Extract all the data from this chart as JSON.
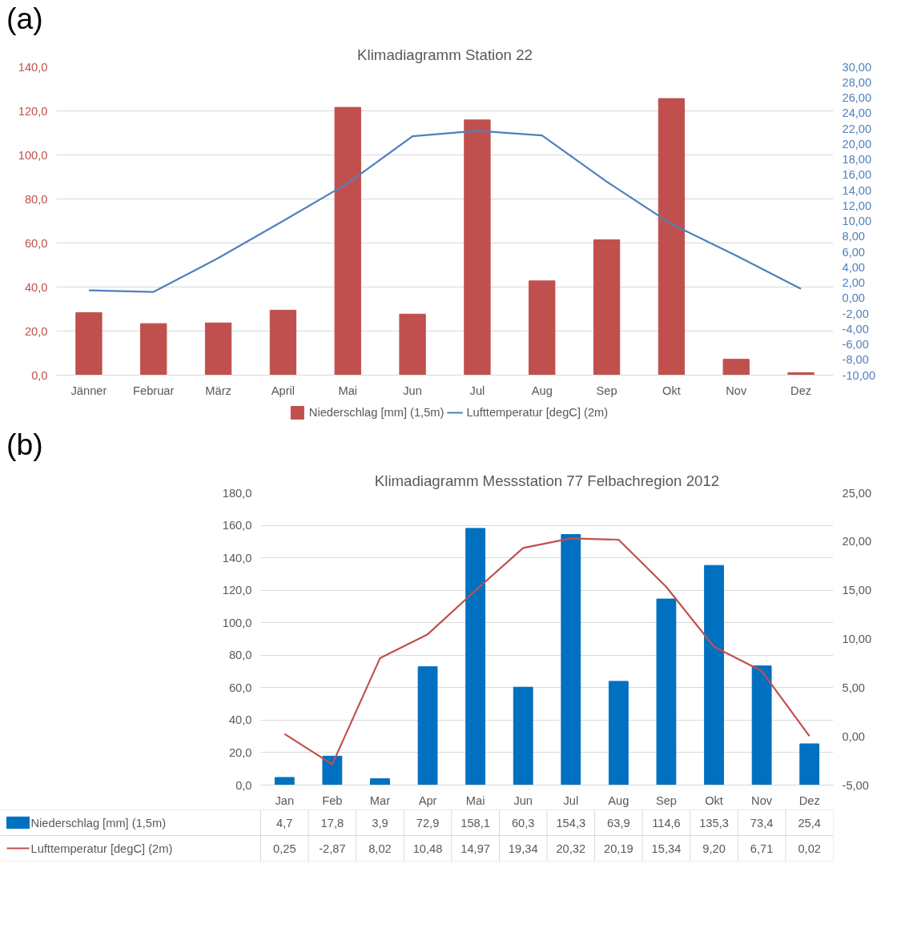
{
  "chart_data": [
    {
      "type": "bar",
      "title": "Klimadiagramm Station 22",
      "annotations": [
        "(a)"
      ],
      "categories": [
        "Jänner",
        "Februar",
        "März",
        "April",
        "Mai",
        "Jun",
        "Jul",
        "Aug",
        "Sep",
        "Okt",
        "Nov",
        "Dez"
      ],
      "series": [
        {
          "name": "Niederschlag [mm] (1,5m)",
          "color": "#c0504d",
          "values": [
            28.4,
            23.4,
            23.7,
            29.5,
            121.6,
            27.7,
            115.9,
            42.8,
            61.5,
            125.6,
            7.2,
            1.1
          ]
        },
        {
          "name": "Lufttemperatur [degC] (2m)",
          "type": "line",
          "axis": "y2",
          "color": "#4f81bd",
          "values": [
            1.0,
            0.8,
            5.2,
            10.0,
            14.9,
            21.0,
            21.7,
            21.1,
            15.1,
            9.6,
            5.5,
            1.2
          ]
        }
      ],
      "ylim": [
        0,
        140
      ],
      "yticks": [
        {
          "value": 0,
          "label": "0,0"
        },
        {
          "value": 20,
          "label": "20,0"
        },
        {
          "value": 40,
          "label": "40,0"
        },
        {
          "value": 60,
          "label": "60,0"
        },
        {
          "value": 80,
          "label": "80,0"
        },
        {
          "value": 100,
          "label": "100,0"
        },
        {
          "value": 120,
          "label": "120,0"
        },
        {
          "value": 140,
          "label": "140,0"
        }
      ],
      "y2lim": [
        -10,
        30
      ],
      "y2ticks": [
        {
          "value": -10,
          "label": "-10,00"
        },
        {
          "value": -8,
          "label": "-8,00"
        },
        {
          "value": -6,
          "label": "-6,00"
        },
        {
          "value": -4,
          "label": "-4,00"
        },
        {
          "value": -2,
          "label": "-2,00"
        },
        {
          "value": 0,
          "label": "0,00"
        },
        {
          "value": 2,
          "label": "2,00"
        },
        {
          "value": 4,
          "label": "4,00"
        },
        {
          "value": 6,
          "label": "6,00"
        },
        {
          "value": 8,
          "label": "8,00"
        },
        {
          "value": 10,
          "label": "10,00"
        },
        {
          "value": 12,
          "label": "12,00"
        },
        {
          "value": 14,
          "label": "14,00"
        },
        {
          "value": 16,
          "label": "16,00"
        },
        {
          "value": 18,
          "label": "18,00"
        },
        {
          "value": 20,
          "label": "20,00"
        },
        {
          "value": 22,
          "label": "22,00"
        },
        {
          "value": 24,
          "label": "24,00"
        },
        {
          "value": 26,
          "label": "26,00"
        },
        {
          "value": 28,
          "label": "28,00"
        },
        {
          "value": 30,
          "label": "30,00"
        }
      ],
      "grid": "y",
      "legend": "bottom"
    },
    {
      "type": "bar",
      "title": "Klimadiagramm Messstation 77 Felbachregion 2012",
      "annotations": [
        "(b)"
      ],
      "categories": [
        "Jan",
        "Feb",
        "Mar",
        "Apr",
        "Mai",
        "Jun",
        "Jul",
        "Aug",
        "Sep",
        "Okt",
        "Nov",
        "Dez"
      ],
      "series": [
        {
          "name": "Niederschlag [mm] (1,5m)",
          "color": "#0070c0",
          "values": [
            4.7,
            17.8,
            3.9,
            72.9,
            158.1,
            60.3,
            154.3,
            63.9,
            114.6,
            135.3,
            73.4,
            25.4
          ],
          "value_labels": [
            "4,7",
            "17,8",
            "3,9",
            "72,9",
            "158,1",
            "60,3",
            "154,3",
            "63,9",
            "114,6",
            "135,3",
            "73,4",
            "25,4"
          ]
        },
        {
          "name": "Lufttemperatur [degC] (2m)",
          "type": "line",
          "axis": "y2",
          "color": "#c0504d",
          "values": [
            0.25,
            -2.87,
            8.02,
            10.48,
            14.97,
            19.34,
            20.32,
            20.19,
            15.34,
            9.2,
            6.71,
            0.02
          ],
          "value_labels": [
            "0,25",
            "-2,87",
            "8,02",
            "10,48",
            "14,97",
            "19,34",
            "20,32",
            "20,19",
            "15,34",
            "9,20",
            "6,71",
            "0,02"
          ]
        }
      ],
      "ylim": [
        0,
        180
      ],
      "yticks": [
        {
          "value": 0,
          "label": "0,0"
        },
        {
          "value": 20,
          "label": "20,0"
        },
        {
          "value": 40,
          "label": "40,0"
        },
        {
          "value": 60,
          "label": "60,0"
        },
        {
          "value": 80,
          "label": "80,0"
        },
        {
          "value": 100,
          "label": "100,0"
        },
        {
          "value": 120,
          "label": "120,0"
        },
        {
          "value": 140,
          "label": "140,0"
        },
        {
          "value": 160,
          "label": "160,0"
        },
        {
          "value": 180,
          "label": "180,0"
        }
      ],
      "y2lim": [
        -5,
        25
      ],
      "y2ticks": [
        {
          "value": -5,
          "label": "-5,00"
        },
        {
          "value": 0,
          "label": "0,00"
        },
        {
          "value": 5,
          "label": "5,00"
        },
        {
          "value": 10,
          "label": "10,00"
        },
        {
          "value": 15,
          "label": "15,00"
        },
        {
          "value": 20,
          "label": "20,00"
        },
        {
          "value": 25,
          "label": "25,00"
        }
      ],
      "grid": "y",
      "legend": "bottom"
    }
  ]
}
